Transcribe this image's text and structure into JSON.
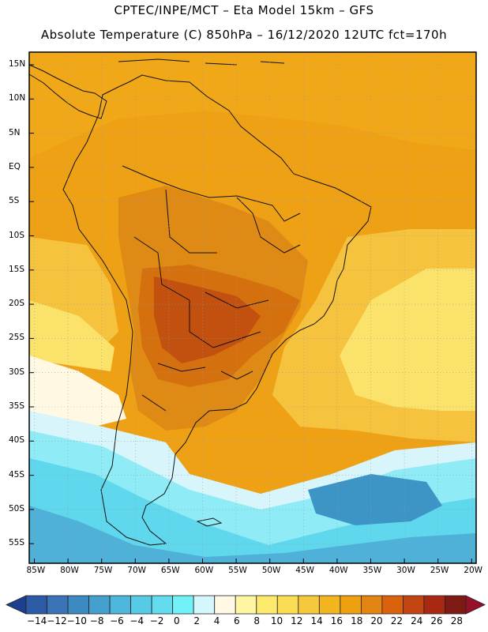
{
  "header": {
    "title_line1": "CPTEC/INPE/MCT –   Eta Model 15km – GFS",
    "title_line2": "Absolute Temperature (C) 850hPa – 16/12/2020 12UTC fct=170h"
  },
  "axes": {
    "lat_labels": [
      "15N",
      "10N",
      "5N",
      "EQ",
      "5S",
      "10S",
      "15S",
      "20S",
      "25S",
      "30S",
      "35S",
      "40S",
      "45S",
      "50S",
      "55S"
    ],
    "lon_labels": [
      "85W",
      "80W",
      "75W",
      "70W",
      "65W",
      "60W",
      "55W",
      "50W",
      "45W",
      "40W",
      "35W",
      "30W",
      "25W",
      "20W"
    ]
  },
  "colorbar": {
    "labels": [
      "-14",
      "-12",
      "-10",
      "-8",
      "-6",
      "-4",
      "-2",
      "0",
      "2",
      "4",
      "6",
      "8",
      "10",
      "12",
      "14",
      "16",
      "18",
      "20",
      "22",
      "24",
      "26",
      "28"
    ],
    "colors": [
      "#1d3f8f",
      "#2d5aa5",
      "#3a73b6",
      "#3d89c2",
      "#44a1cf",
      "#4db6dc",
      "#57cae6",
      "#62dcee",
      "#72f2f8",
      "#d4f6fd",
      "#fff8e4",
      "#fff6a4",
      "#fde96b",
      "#fadc55",
      "#f6c93d",
      "#f2b41f",
      "#eda010",
      "#e48413",
      "#d9620c",
      "#c24410",
      "#a82812",
      "#7e1a14",
      "#96102c"
    ]
  },
  "map_colors": {
    "deep_blue": "#3d95c6",
    "blue": "#4fb0d8",
    "cyan": "#5fd7ec",
    "aqua": "#8fecf7",
    "pale_cyan": "#d7f5fb",
    "cream": "#fff8e2",
    "light_yellow": "#fff1a0",
    "yellow": "#fbe26a",
    "gold": "#f5c33e",
    "orange_light": "#f2b220",
    "orange": "#eea115",
    "dark_orange": "#e08a16",
    "red_orange": "#d5700f",
    "red": "#c2500f",
    "coast": "#111111"
  }
}
